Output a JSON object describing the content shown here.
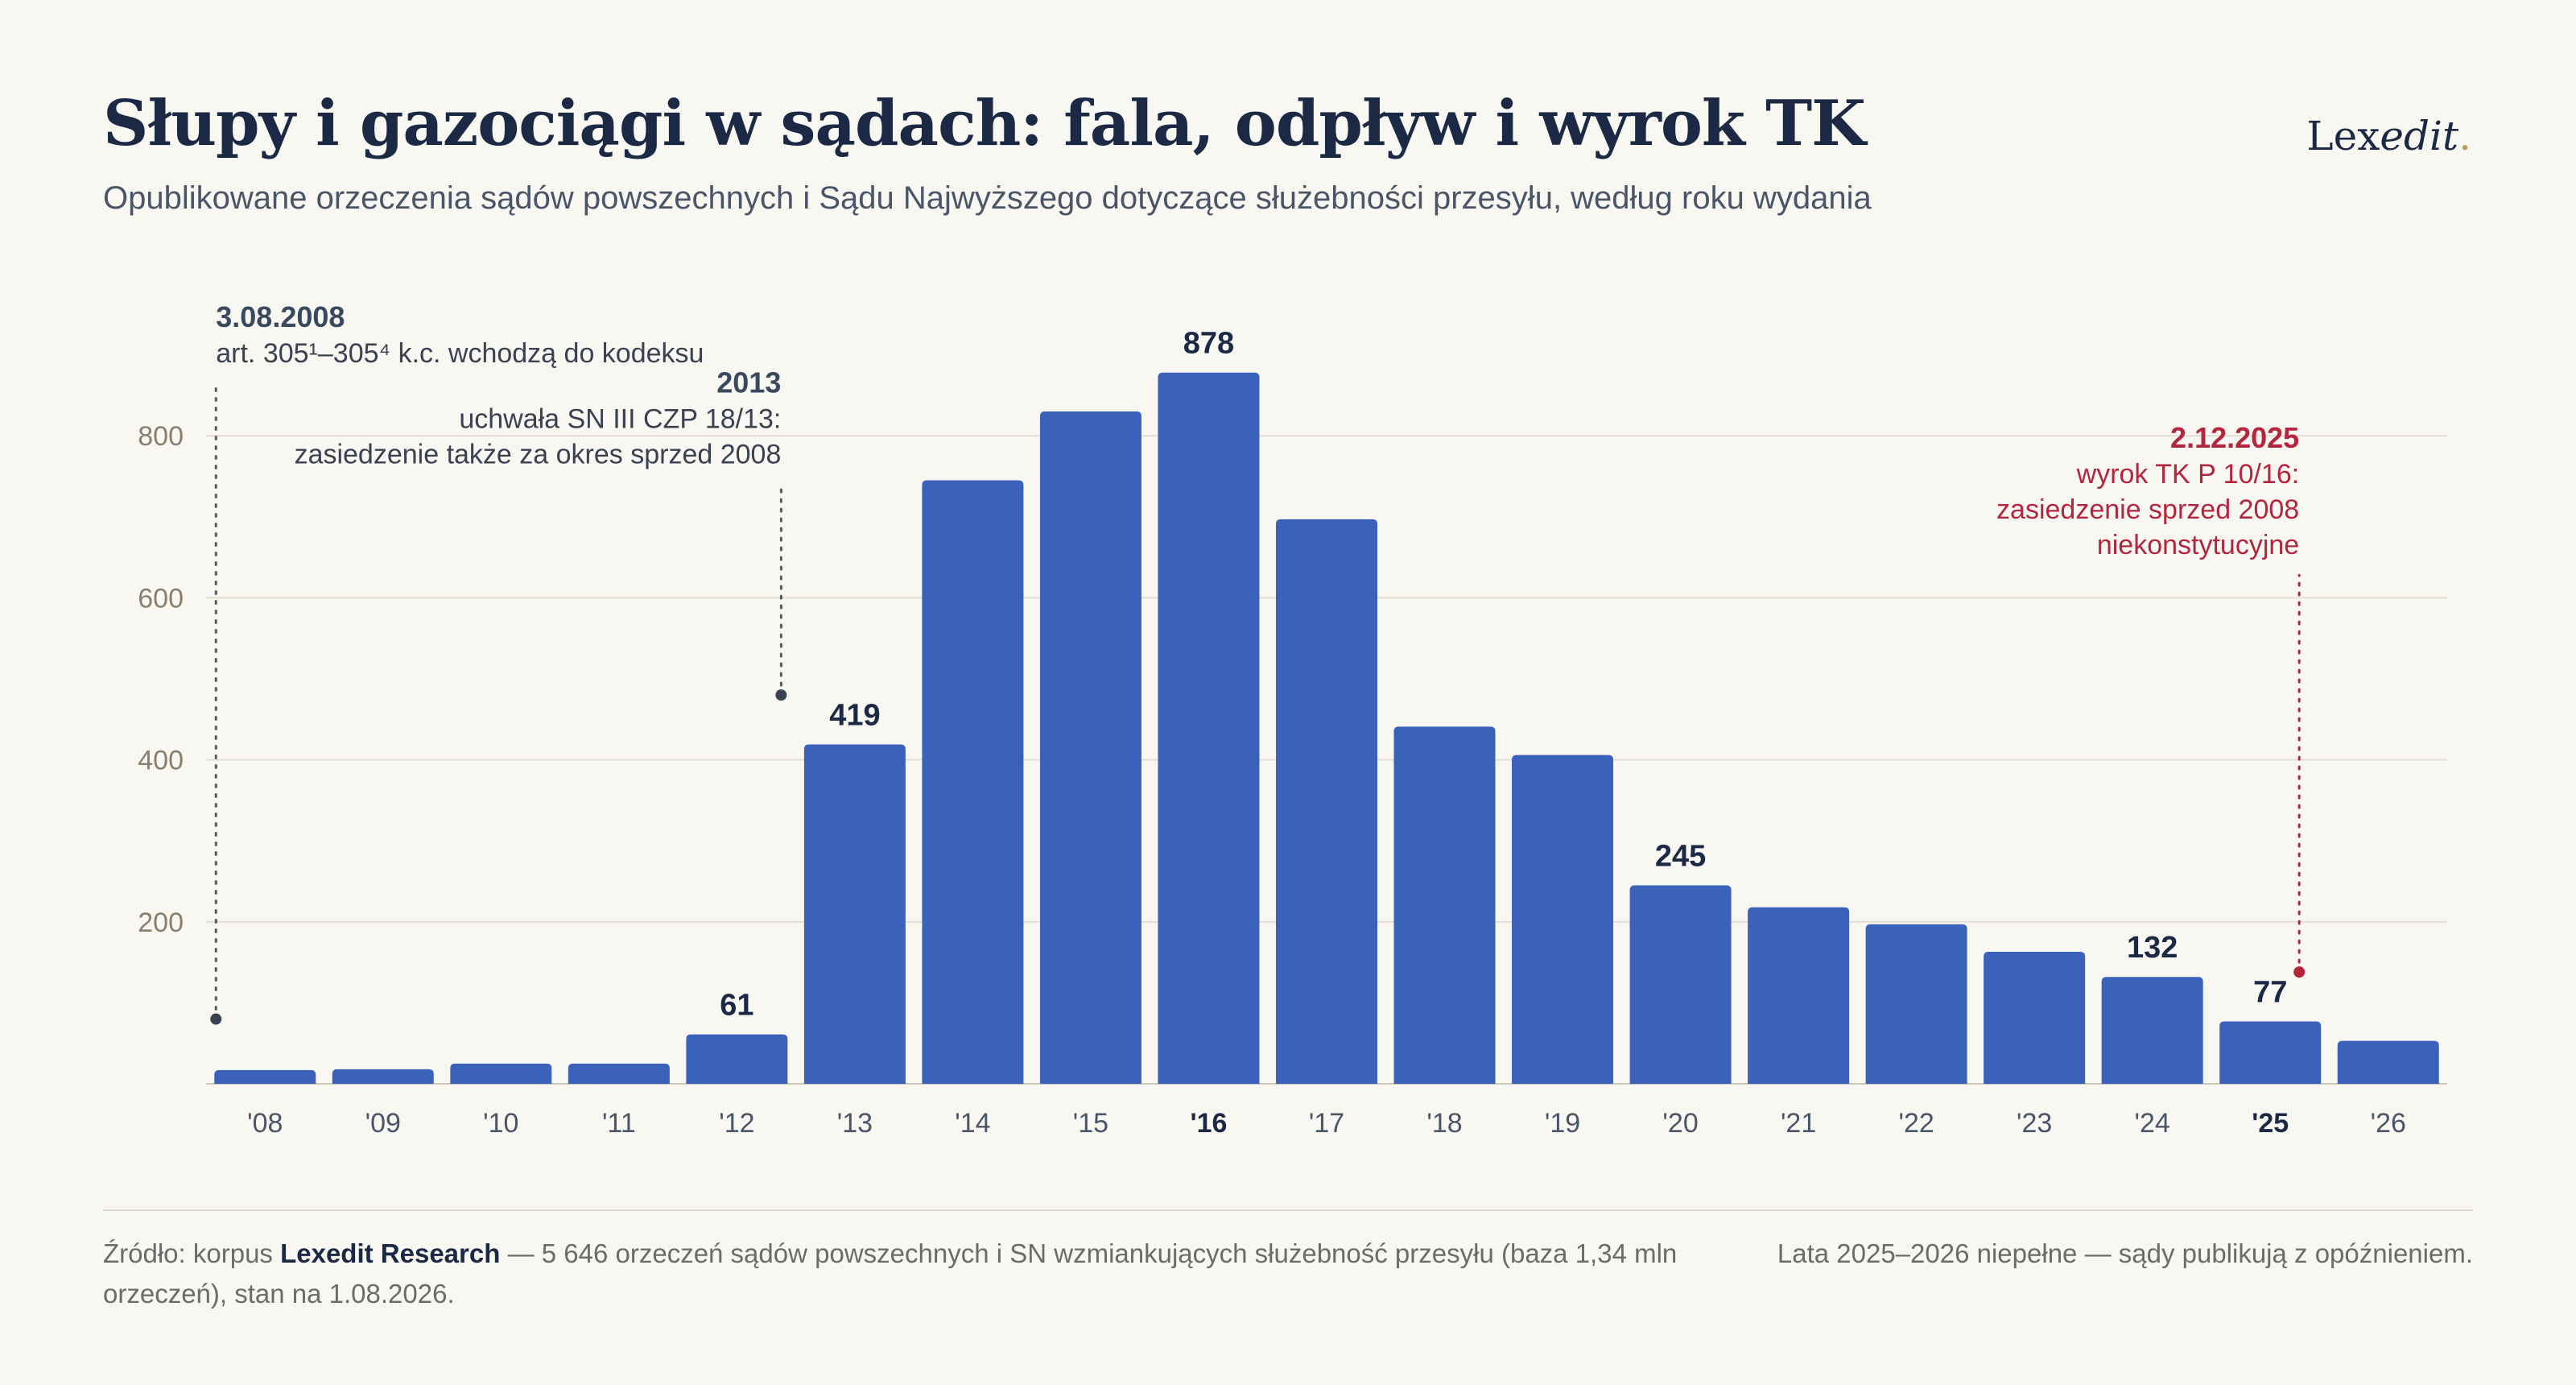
{
  "header": {
    "title": "Słupy i gazociągi w sądach: fala, odpływ i wyrok TK",
    "subtitle": "Opublikowane orzeczenia sądów powszechnych i Sądu Najwyższego dotyczące służebności przesyłu, według roku wydania"
  },
  "logo": {
    "text_regular": "Lex",
    "text_italic": "edit",
    "dot": "."
  },
  "colors": {
    "bar": "#3b62ba",
    "accent_red": "#b3263e",
    "text_dark": "#1b2944",
    "axis_text": "#8a7f6c",
    "grid": "#e3ded3"
  },
  "chart_data": {
    "type": "bar",
    "categories": [
      "'08",
      "'09",
      "'10",
      "'11",
      "'12",
      "'13",
      "'14",
      "'15",
      "'16",
      "'17",
      "'18",
      "'19",
      "'20",
      "'21",
      "'22",
      "'23",
      "'24",
      "'25",
      "'26"
    ],
    "values": [
      17,
      18,
      25,
      25,
      61,
      419,
      745,
      830,
      878,
      697,
      441,
      406,
      245,
      218,
      197,
      163,
      132,
      77,
      53
    ],
    "bold_categories": [
      "'16",
      "'25"
    ],
    "data_labels": [
      {
        "category": "'12",
        "text": "61"
      },
      {
        "category": "'13",
        "text": "419"
      },
      {
        "category": "'16",
        "text": "878"
      },
      {
        "category": "'20",
        "text": "245"
      },
      {
        "category": "'24",
        "text": "132"
      },
      {
        "category": "'25",
        "text": "77"
      }
    ],
    "ylim": [
      0,
      900
    ],
    "yticks": [
      200,
      400,
      600,
      800
    ],
    "grid": true,
    "annotations": [
      {
        "category": "'08",
        "marker_value": 80,
        "line_top_value": 865,
        "date": "3.08.2008",
        "lines": [
          "art. 305¹–305⁴ k.c. wchodzą do kodeksu"
        ],
        "align": "left",
        "color": "dark"
      },
      {
        "category": "'12",
        "marker_value": 480,
        "line_top_value": 740,
        "date": "2013",
        "lines": [
          "uchwała SN III CZP 18/13:",
          "zasiedzenie także za okres sprzed 2008"
        ],
        "align": "right",
        "color": "dark"
      },
      {
        "category": "'25",
        "marker_value": 138,
        "line_top_value": 628,
        "date": "2.12.2025",
        "lines": [
          "wyrok TK P 10/16:",
          "zasiedzenie sprzed 2008",
          "niekonstytucyjne"
        ],
        "align": "right",
        "color": "red"
      }
    ]
  },
  "footer": {
    "source_prefix": "Źródło: korpus ",
    "source_bold": "Lexedit Research",
    "source_rest": " — 5 646 orzeczeń sądów powszechnych i SN wzmiankujących służebność przesyłu (baza 1,34 mln orzeczeń), stan na 1.08.2026.",
    "note": "Lata 2025–2026 niepełne — sądy publikują z opóźnieniem."
  }
}
